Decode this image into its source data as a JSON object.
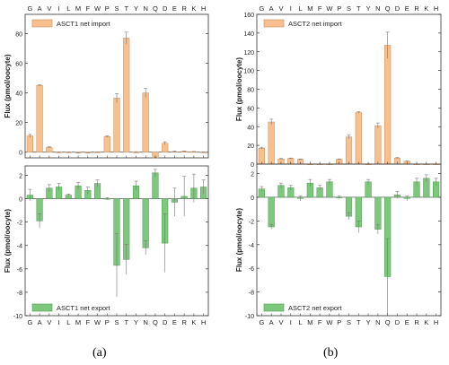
{
  "panels": [
    {
      "caption": "(a)"
    },
    {
      "caption": "(b)"
    }
  ],
  "colors": {
    "import": "#f9c08f",
    "export": "#7dc87d"
  },
  "chart_data": [
    {
      "type": "bar",
      "panel": "(a)",
      "part": "import",
      "categories": [
        "G",
        "A",
        "V",
        "I",
        "L",
        "M",
        "F",
        "W",
        "P",
        "S",
        "T",
        "Y",
        "N",
        "Q",
        "D",
        "E",
        "R",
        "K",
        "H"
      ],
      "series": [
        {
          "name": "ASCT1 net import",
          "values": [
            11,
            45,
            3.2,
            0,
            0,
            -0.5,
            -0.5,
            0,
            10.5,
            36.5,
            77,
            0,
            40,
            -3.8,
            6,
            0.3,
            0.5,
            0.3,
            0
          ],
          "errors": [
            1,
            0.5,
            0.5,
            0.2,
            0.2,
            0.2,
            0.2,
            0.2,
            0.5,
            3,
            4,
            0.3,
            3,
            0.5,
            1,
            0.5,
            0.3,
            0.2,
            0.2
          ]
        }
      ],
      "ylabel": "Flux (pmol/oocyte)",
      "ylim": [
        -3.8,
        93
      ],
      "yticks": [
        0,
        20,
        40,
        60,
        80
      ],
      "grid": false,
      "legend": "top-left"
    },
    {
      "type": "bar",
      "panel": "(a)",
      "part": "export",
      "categories": [
        "G",
        "A",
        "V",
        "I",
        "L",
        "M",
        "F",
        "W",
        "P",
        "S",
        "T",
        "Y",
        "N",
        "Q",
        "D",
        "E",
        "R",
        "K",
        "H"
      ],
      "series": [
        {
          "name": "ASCT1 net export",
          "values": [
            0.3,
            -1.9,
            0.9,
            1.0,
            0.3,
            1.1,
            0.7,
            1.3,
            0,
            -5.7,
            -5.2,
            1.1,
            -4.2,
            2.2,
            -3.8,
            -0.3,
            0.2,
            0.9,
            1.0
          ],
          "errors": [
            0.5,
            0.6,
            0.3,
            0.3,
            0.1,
            0.3,
            0.3,
            0.3,
            0.1,
            2.7,
            1.3,
            0.4,
            0.6,
            0.3,
            2.5,
            1.2,
            1.7,
            1.2,
            0.6
          ]
        }
      ],
      "ylabel": "Flux (pmol/oocyte)",
      "ylim": [
        -10,
        2.8
      ],
      "yticks": [
        -10,
        -8,
        -6,
        -4,
        -2,
        0,
        2
      ],
      "grid": false,
      "legend": "bottom-left"
    },
    {
      "type": "bar",
      "panel": "(b)",
      "part": "import",
      "categories": [
        "G",
        "A",
        "V",
        "I",
        "L",
        "M",
        "F",
        "W",
        "P",
        "S",
        "T",
        "Y",
        "N",
        "Q",
        "D",
        "E",
        "R",
        "K",
        "H"
      ],
      "series": [
        {
          "name": "ASCT2 net import",
          "values": [
            17,
            45,
            5.5,
            6,
            5,
            0,
            0,
            0,
            5,
            29,
            55,
            0,
            41,
            127,
            6.5,
            3,
            0,
            0,
            0
          ],
          "errors": [
            1,
            3,
            0.5,
            0.5,
            0.5,
            0.2,
            0.2,
            0.2,
            0.5,
            2,
            1,
            0.3,
            3,
            14,
            0.5,
            0.3,
            0.2,
            0.2,
            0.2
          ]
        }
      ],
      "ylabel": "Flux (pmol/oocyte)",
      "ylim": [
        0,
        160
      ],
      "yticks": [
        0,
        20,
        40,
        60,
        80,
        100,
        120,
        140,
        160
      ],
      "grid": false,
      "legend": "top-left"
    },
    {
      "type": "bar",
      "panel": "(b)",
      "part": "export",
      "categories": [
        "G",
        "A",
        "V",
        "I",
        "L",
        "M",
        "F",
        "W",
        "P",
        "S",
        "T",
        "Y",
        "N",
        "Q",
        "D",
        "E",
        "R",
        "K",
        "H"
      ],
      "series": [
        {
          "name": "ASCT2 net export",
          "values": [
            0.7,
            -2.5,
            1.0,
            0.8,
            -0.1,
            1.2,
            0.8,
            1.3,
            0,
            -1.6,
            -2.5,
            1.3,
            -2.7,
            -6.7,
            0.2,
            -0.1,
            1.3,
            1.6,
            1.3
          ],
          "errors": [
            0.2,
            0.2,
            0.2,
            0.2,
            0.2,
            0.3,
            0.2,
            0.2,
            0.1,
            0.3,
            0.5,
            0.2,
            0.4,
            3.2,
            0.3,
            0.2,
            0.3,
            0.3,
            0.3
          ]
        }
      ],
      "ylabel": "Flux (pmol/oocyte)",
      "ylim": [
        -10,
        2.8
      ],
      "yticks": [
        -10,
        -8,
        -6,
        -4,
        -2,
        0,
        2
      ],
      "grid": false,
      "legend": "bottom-left"
    }
  ]
}
